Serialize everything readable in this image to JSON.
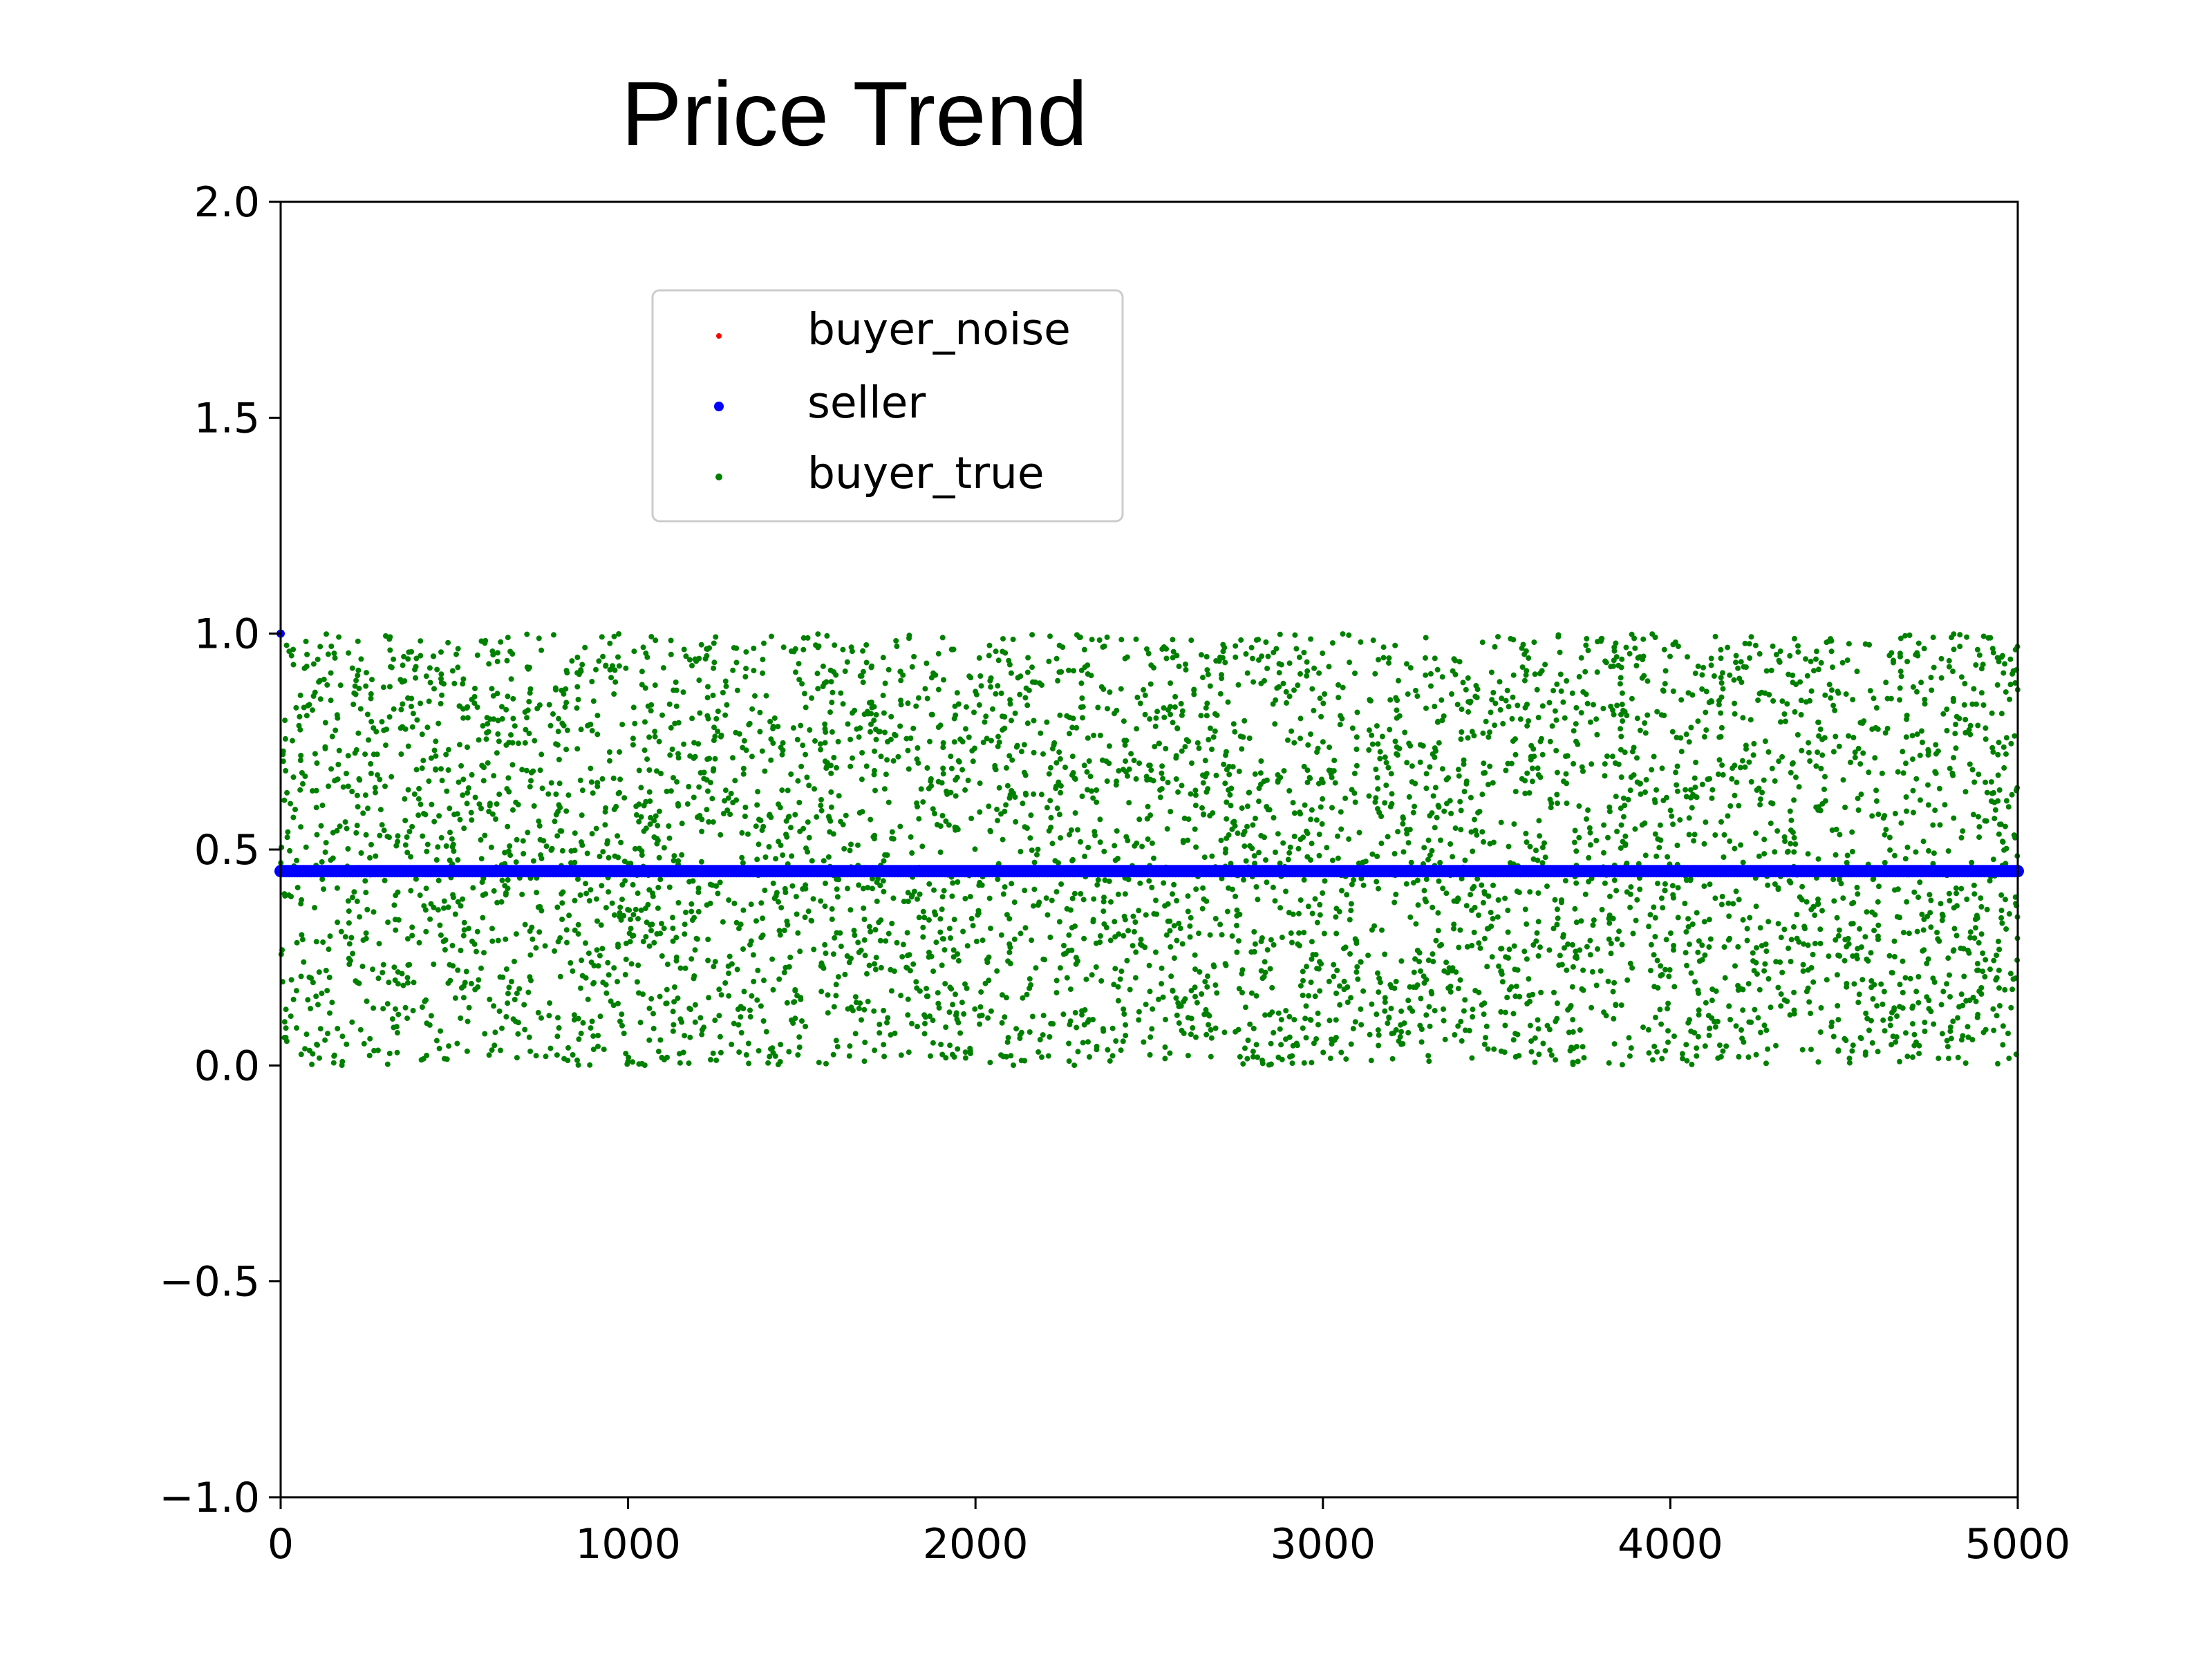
{
  "chart_data": {
    "type": "scatter",
    "title": "Price Trend",
    "xlabel": "",
    "ylabel": "",
    "xlim": [
      0,
      5000
    ],
    "ylim": [
      -1.0,
      2.0
    ],
    "x_ticks": [
      "0",
      "1000",
      "2000",
      "3000",
      "4000",
      "5000"
    ],
    "y_ticks": [
      "−1.0",
      "−0.5",
      "0.0",
      "0.5",
      "1.0",
      "1.5",
      "2.0"
    ],
    "x_tick_values": [
      0,
      1000,
      2000,
      3000,
      4000,
      5000
    ],
    "y_tick_values": [
      -1.0,
      -0.5,
      0.0,
      0.5,
      1.0,
      1.5,
      2.0
    ],
    "grid": false,
    "legend_position": "upper center",
    "series": [
      {
        "name": "buyer_noise",
        "color": "#ff0000",
        "marker": "point",
        "note_values": "no visible points (hidden beneath other series)",
        "x_range": [
          0,
          5000
        ],
        "y_range": [
          0.0,
          1.0
        ],
        "n_points": 0
      },
      {
        "name": "seller",
        "color": "#0000ff",
        "marker": "point",
        "x_range": [
          0,
          5000
        ],
        "y_constant": 0.45,
        "first_point": {
          "x": 0,
          "y": 1.0
        },
        "n_points": 5000
      },
      {
        "name": "buyer_true",
        "color": "#008000",
        "marker": "point",
        "x_range": [
          0,
          5000
        ],
        "y_range": [
          0.0,
          1.0
        ],
        "distribution": "uniform",
        "n_points": 5000
      }
    ]
  }
}
